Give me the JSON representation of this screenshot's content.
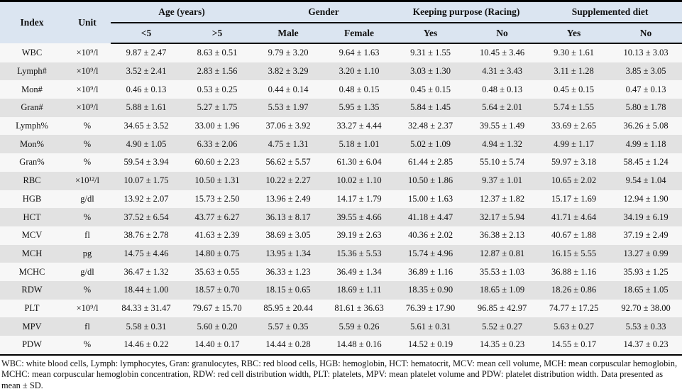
{
  "colors": {
    "header_bg": "#dbe5f1",
    "row_light": "#f7f7f7",
    "row_dark": "#e2e2e2",
    "rule": "#000000"
  },
  "table": {
    "header": {
      "index_label": "Index",
      "unit_label": "Unit",
      "groups": [
        {
          "label": "Age (years)",
          "cols": [
            "<5",
            ">5"
          ]
        },
        {
          "label": "Gender",
          "cols": [
            "Male",
            "Female"
          ]
        },
        {
          "label": "Keeping purpose (Racing)",
          "cols": [
            "Yes",
            "No"
          ]
        },
        {
          "label": "Supplemented diet",
          "cols": [
            "Yes",
            "No"
          ]
        }
      ]
    },
    "rows": [
      {
        "index": "WBC",
        "unit": "×10⁹/l",
        "values": [
          "9.87 ± 2.47",
          "8.63 ± 0.51",
          "9.79 ± 3.20",
          "9.64 ± 1.63",
          "9.31 ± 1.55",
          "10.45 ± 3.46",
          "9.30 ± 1.61",
          "10.13 ± 3.03"
        ]
      },
      {
        "index": "Lymph#",
        "unit": "×10⁹/l",
        "values": [
          "3.52 ± 2.41",
          "2.83 ± 1.56",
          "3.82 ± 3.29",
          "3.20 ± 1.10",
          "3.03 ± 1.30",
          "4.31 ± 3.43",
          "3.11 ± 1.28",
          "3.85 ± 3.05"
        ]
      },
      {
        "index": "Mon#",
        "unit": "×10⁹/l",
        "values": [
          "0.46 ± 0.13",
          "0.53 ± 0.25",
          "0.44 ± 0.14",
          "0.48 ± 0.15",
          "0.45 ± 0.15",
          "0.48 ± 0.13",
          "0.45 ± 0.15",
          "0.47 ± 0.13"
        ]
      },
      {
        "index": "Gran#",
        "unit": "×10⁹/l",
        "values": [
          "5.88 ± 1.61",
          "5.27 ± 1.75",
          "5.53 ± 1.97",
          "5.95 ± 1.35",
          "5.84 ± 1.45",
          "5.64 ± 2.01",
          "5.74 ± 1.55",
          "5.80 ± 1.78"
        ]
      },
      {
        "index": "Lymph%",
        "unit": "%",
        "values": [
          "34.65 ± 3.52",
          "33.00 ± 1.96",
          "37.06 ± 3.92",
          "33.27 ± 4.44",
          "32.48 ± 2.37",
          "39.55 ± 1.49",
          "33.69 ± 2.65",
          "36.26 ± 5.08"
        ]
      },
      {
        "index": "Mon%",
        "unit": "%",
        "values": [
          "4.90 ± 1.05",
          "6.33 ± 2.06",
          "4.75 ± 1.31",
          "5.18 ± 1.01",
          "5.02 ± 1.09",
          "4.94 ± 1.32",
          "4.99 ± 1.17",
          "4.99 ± 1.18"
        ]
      },
      {
        "index": "Gran%",
        "unit": "%",
        "values": [
          "59.54 ± 3.94",
          "60.60 ± 2.23",
          "56.62 ± 5.57",
          "61.30 ± 6.04",
          "61.44 ± 2.85",
          "55.10 ± 5.74",
          "59.97 ± 3.18",
          "58.45 ± 1.24"
        ]
      },
      {
        "index": "RBC",
        "unit": "×10¹²/l",
        "values": [
          "10.07 ± 1.75",
          "10.50 ± 1.31",
          "10.22 ± 2.27",
          "10.02 ± 1.10",
          "10.50 ± 1.86",
          "9.37 ± 1.01",
          "10.65 ± 2.02",
          "9.54 ± 1.04"
        ]
      },
      {
        "index": "HGB",
        "unit": "g/dl",
        "values": [
          "13.92 ± 2.07",
          "15.73 ± 2.50",
          "13.96 ± 2.49",
          "14.17 ± 1.79",
          "15.00 ± 1.63",
          "12.37 ± 1.82",
          "15.17 ± 1.69",
          "12.94 ± 1.90"
        ]
      },
      {
        "index": "HCT",
        "unit": "%",
        "values": [
          "37.52 ± 6.54",
          "43.77 ± 6.27",
          "36.13 ± 8.17",
          "39.55 ± 4.66",
          "41.18 ± 4.47",
          "32.17 ± 5.94",
          "41.71 ± 4.64",
          "34.19 ± 6.19"
        ]
      },
      {
        "index": "MCV",
        "unit": "fl",
        "values": [
          "38.76 ± 2.78",
          "41.63 ± 2.39",
          "38.69 ± 3.05",
          "39.19 ± 2.63",
          "40.36 ± 2.02",
          "36.38 ± 2.13",
          "40.67 ± 1.88",
          "37.19 ± 2.49"
        ]
      },
      {
        "index": "MCH",
        "unit": "pg",
        "values": [
          "14.75 ± 4.46",
          "14.80 ± 0.75",
          "13.95 ± 1.34",
          "15.36 ± 5.53",
          "15.74 ± 4.96",
          "12.87 ± 0.81",
          "16.15 ± 5.55",
          "13.27 ± 0.99"
        ]
      },
      {
        "index": "MCHC",
        "unit": "g/dl",
        "values": [
          "36.47 ± 1.32",
          "35.63 ± 0.55",
          "36.33 ± 1.23",
          "36.49 ± 1.34",
          "36.89 ± 1.16",
          "35.53 ± 1.03",
          "36.88 ± 1.16",
          "35.93 ± 1.25"
        ]
      },
      {
        "index": "RDW",
        "unit": "%",
        "values": [
          "18.44 ± 1.00",
          "18.57 ± 0.70",
          "18.15 ± 0.65",
          "18.69 ± 1.11",
          "18.35 ± 0.90",
          "18.65 ± 1.09",
          "18.26 ± 0.86",
          "18.65 ± 1.05"
        ]
      },
      {
        "index": "PLT",
        "unit": "×10⁹/l",
        "values": [
          "84.33 ± 31.47",
          "79.67 ± 15.70",
          "85.95 ± 20.44",
          "81.61 ± 36.63",
          "76.39 ± 17.90",
          "96.85 ± 42.97",
          "74.77 ± 17.25",
          "92.70 ± 38.00"
        ]
      },
      {
        "index": "MPV",
        "unit": "fl",
        "values": [
          "5.58 ± 0.31",
          "5.60 ± 0.20",
          "5.57 ± 0.35",
          "5.59 ± 0.26",
          "5.61 ± 0.31",
          "5.52 ± 0.27",
          "5.63 ± 0.27",
          "5.53 ± 0.33"
        ]
      },
      {
        "index": "PDW",
        "unit": "%",
        "values": [
          "14.46 ± 0.22",
          "14.40 ± 0.17",
          "14.44 ± 0.28",
          "14.48 ± 0.16",
          "14.52 ± 0.19",
          "14.35 ± 0.23",
          "14.55 ± 0.17",
          "14.37 ± 0.23"
        ]
      }
    ],
    "footnote": "WBC: white blood cells, Lymph: lymphocytes, Gran: granulocytes, RBC: red blood cells, HGB: hemoglobin, HCT: hematocrit, MCV: mean cell volume, MCH: mean corpuscular hemoglobin, MCHC: mean corpuscular hemoglobin concentration, RDW: red cell distribution width, PLT: platelets, MPV: mean platelet volume and PDW: platelet distribution width. Data presented as mean ± SD."
  }
}
